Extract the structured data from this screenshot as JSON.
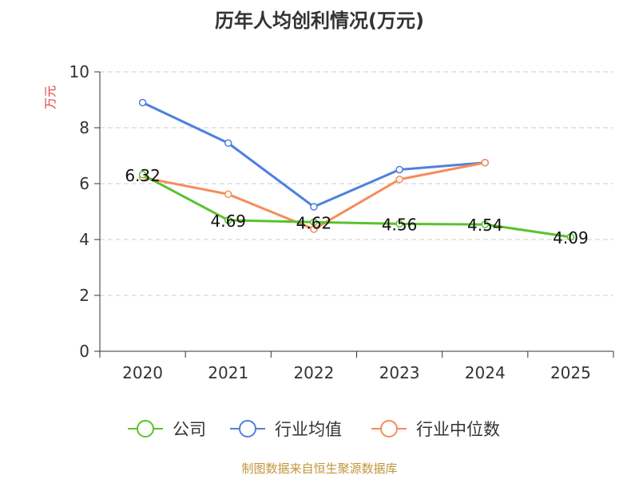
{
  "chart_data": {
    "type": "line",
    "title": "历年人均创利情况(万元)",
    "ylabel": "万元",
    "xlabel": "",
    "categories": [
      "2020",
      "2021",
      "2022",
      "2023",
      "2024",
      "2025"
    ],
    "ylim": [
      0,
      10
    ],
    "yticks": [
      "0",
      "2",
      "4",
      "6",
      "8",
      "10"
    ],
    "grid": true,
    "legend_position": "bottom",
    "series": [
      {
        "name": "公司",
        "color": "#5ac22e",
        "values": [
          6.32,
          4.69,
          4.62,
          4.56,
          4.54,
          4.09
        ],
        "labels": [
          "6.32",
          "4.69",
          "4.62",
          "4.56",
          "4.54",
          "4.09"
        ]
      },
      {
        "name": "行业均值",
        "color": "#4f80de",
        "values": [
          8.9,
          7.45,
          5.17,
          6.5,
          6.75,
          null
        ]
      },
      {
        "name": "行业中位数",
        "color": "#f78c5a",
        "values": [
          6.22,
          5.62,
          4.37,
          6.15,
          6.75,
          null
        ]
      }
    ]
  },
  "footer": "制图数据来自恒生聚源数据库"
}
